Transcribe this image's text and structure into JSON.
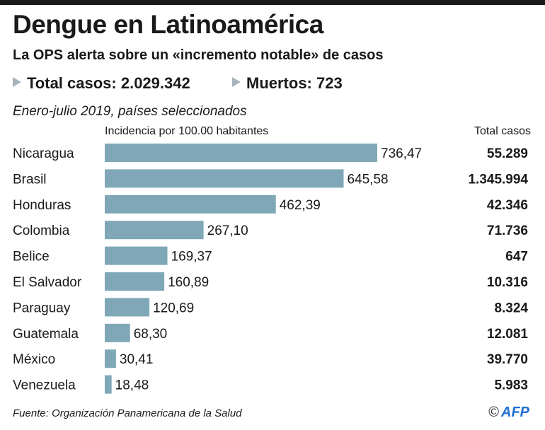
{
  "header": {
    "title": "Dengue en Latinoamérica",
    "subtitle": "La OPS alerta sobre un «incremento notable» de casos",
    "total_casos": "Total casos: 2.029.342",
    "muertos": "Muertos: 723",
    "period": "Enero-julio 2019, países seleccionados"
  },
  "chart_data": {
    "type": "bar",
    "orientation": "horizontal",
    "xlabel": "Incidencia por 100.00 habitantes",
    "table_header": "Total casos",
    "categories": [
      "Nicaragua",
      "Brasil",
      "Honduras",
      "Colombia",
      "Belice",
      "El Salvador",
      "Paraguay",
      "Guatemala",
      "México",
      "Venezuela"
    ],
    "values": [
      736.47,
      645.58,
      462.39,
      267.1,
      169.37,
      160.89,
      120.69,
      68.3,
      30.41,
      18.48
    ],
    "value_labels": [
      "736,47",
      "645,58",
      "462,39",
      "267,10",
      "169,37",
      "160,89",
      "120,69",
      "68,30",
      "30,41",
      "18,48"
    ],
    "total_casos": [
      "55.289",
      "1.345.994",
      "42.346",
      "71.736",
      "647",
      "10.316",
      "8.324",
      "12.081",
      "39.770",
      "5.983"
    ],
    "bar_color": "#7fa7b7",
    "xlim": [
      0,
      736.47
    ]
  },
  "footer": {
    "source": "Fuente: Organización Panamericana de la Salud",
    "logo": "AFP",
    "copyright": "©"
  }
}
